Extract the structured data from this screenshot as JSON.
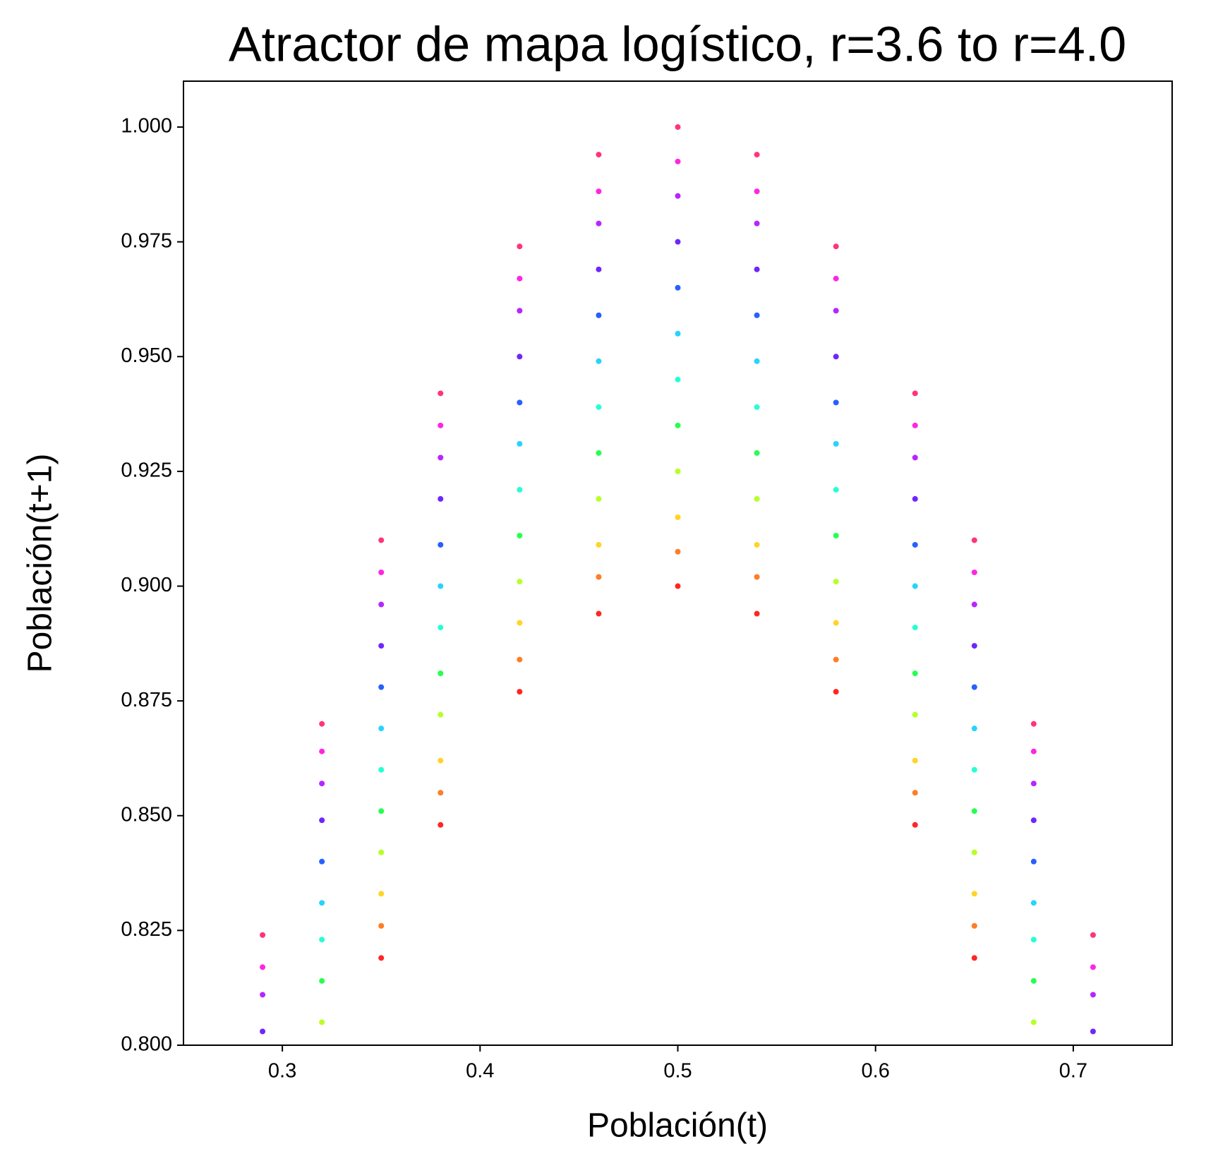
{
  "chart_data": {
    "type": "scatter",
    "title": "Atractor de mapa logístico, r=3.6 to r=4.0",
    "xlabel": "Población(t)",
    "ylabel": "Población(t+1)",
    "xlim": [
      0.25,
      0.75
    ],
    "ylim": [
      0.8,
      1.01
    ],
    "xticks": [
      0.3,
      0.4,
      0.5,
      0.6,
      0.7
    ],
    "yticks": [
      {
        "value": 0.8,
        "label": "0.800"
      },
      {
        "value": 0.825,
        "label": "0.825"
      },
      {
        "value": 0.85,
        "label": "0.850"
      },
      {
        "value": 0.875,
        "label": "0.875"
      },
      {
        "value": 0.9,
        "label": "0.900"
      },
      {
        "value": 0.925,
        "label": "0.925"
      },
      {
        "value": 0.95,
        "label": "0.950"
      },
      {
        "value": 0.975,
        "label": "0.975"
      },
      {
        "value": 1.0,
        "label": "1.000"
      }
    ],
    "grid": false,
    "series": [
      {
        "color": "#ff0000",
        "x": [
          0.35,
          0.38,
          0.42,
          0.46,
          0.5,
          0.54,
          0.58,
          0.62,
          0.65
        ],
        "values": [
          0.819,
          0.848,
          0.877,
          0.894,
          0.9,
          0.894,
          0.877,
          0.848,
          0.819
        ]
      },
      {
        "color": "#ff6600",
        "x": [
          0.35,
          0.38,
          0.42,
          0.46,
          0.5,
          0.54,
          0.58,
          0.62,
          0.65
        ],
        "values": [
          0.826,
          0.855,
          0.884,
          0.902,
          0.9075,
          0.902,
          0.884,
          0.855,
          0.826
        ]
      },
      {
        "color": "#ffcc00",
        "x": [
          0.35,
          0.38,
          0.42,
          0.46,
          0.5,
          0.54,
          0.58,
          0.62,
          0.65
        ],
        "values": [
          0.833,
          0.862,
          0.892,
          0.909,
          0.915,
          0.909,
          0.892,
          0.862,
          0.833
        ]
      },
      {
        "color": "#aaff00",
        "x": [
          0.32,
          0.35,
          0.38,
          0.42,
          0.46,
          0.5,
          0.54,
          0.58,
          0.62,
          0.65,
          0.68
        ],
        "values": [
          0.805,
          0.842,
          0.872,
          0.901,
          0.919,
          0.925,
          0.919,
          0.901,
          0.872,
          0.842,
          0.805
        ]
      },
      {
        "color": "#00ff33",
        "x": [
          0.32,
          0.35,
          0.38,
          0.42,
          0.46,
          0.5,
          0.54,
          0.58,
          0.62,
          0.65,
          0.68
        ],
        "values": [
          0.814,
          0.851,
          0.881,
          0.911,
          0.929,
          0.935,
          0.929,
          0.911,
          0.881,
          0.851,
          0.814
        ]
      },
      {
        "color": "#00ffcc",
        "x": [
          0.32,
          0.35,
          0.38,
          0.42,
          0.46,
          0.5,
          0.54,
          0.58,
          0.62,
          0.65,
          0.68
        ],
        "values": [
          0.823,
          0.86,
          0.891,
          0.921,
          0.939,
          0.945,
          0.939,
          0.921,
          0.891,
          0.86,
          0.823
        ]
      },
      {
        "color": "#00ccff",
        "x": [
          0.32,
          0.35,
          0.38,
          0.42,
          0.46,
          0.5,
          0.54,
          0.58,
          0.62,
          0.65,
          0.68
        ],
        "values": [
          0.831,
          0.869,
          0.9,
          0.931,
          0.949,
          0.955,
          0.949,
          0.931,
          0.9,
          0.869,
          0.831
        ]
      },
      {
        "color": "#0044ff",
        "x": [
          0.32,
          0.35,
          0.38,
          0.42,
          0.46,
          0.5,
          0.54,
          0.58,
          0.62,
          0.65,
          0.68
        ],
        "values": [
          0.84,
          0.878,
          0.909,
          0.94,
          0.959,
          0.965,
          0.959,
          0.94,
          0.909,
          0.878,
          0.84
        ]
      },
      {
        "color": "#5500ff",
        "x": [
          0.29,
          0.32,
          0.35,
          0.38,
          0.42,
          0.46,
          0.5,
          0.54,
          0.58,
          0.62,
          0.65,
          0.68,
          0.71
        ],
        "values": [
          0.803,
          0.849,
          0.887,
          0.919,
          0.95,
          0.969,
          0.975,
          0.969,
          0.95,
          0.919,
          0.887,
          0.849,
          0.803
        ]
      },
      {
        "color": "#aa00ff",
        "x": [
          0.29,
          0.32,
          0.35,
          0.38,
          0.42,
          0.46,
          0.5,
          0.54,
          0.58,
          0.62,
          0.65,
          0.68,
          0.71
        ],
        "values": [
          0.811,
          0.857,
          0.896,
          0.928,
          0.96,
          0.979,
          0.985,
          0.979,
          0.96,
          0.928,
          0.896,
          0.857,
          0.811
        ]
      },
      {
        "color": "#ff00dd",
        "x": [
          0.29,
          0.32,
          0.35,
          0.38,
          0.42,
          0.46,
          0.5,
          0.54,
          0.58,
          0.62,
          0.65,
          0.68,
          0.71
        ],
        "values": [
          0.817,
          0.864,
          0.903,
          0.935,
          0.967,
          0.986,
          0.9925,
          0.986,
          0.967,
          0.935,
          0.903,
          0.864,
          0.817
        ]
      },
      {
        "color": "#ff1166",
        "x": [
          0.29,
          0.32,
          0.35,
          0.38,
          0.42,
          0.46,
          0.5,
          0.54,
          0.58,
          0.62,
          0.65,
          0.68,
          0.71
        ],
        "values": [
          0.824,
          0.87,
          0.91,
          0.942,
          0.974,
          0.994,
          1.0,
          0.994,
          0.974,
          0.942,
          0.91,
          0.87,
          0.824
        ]
      }
    ]
  }
}
